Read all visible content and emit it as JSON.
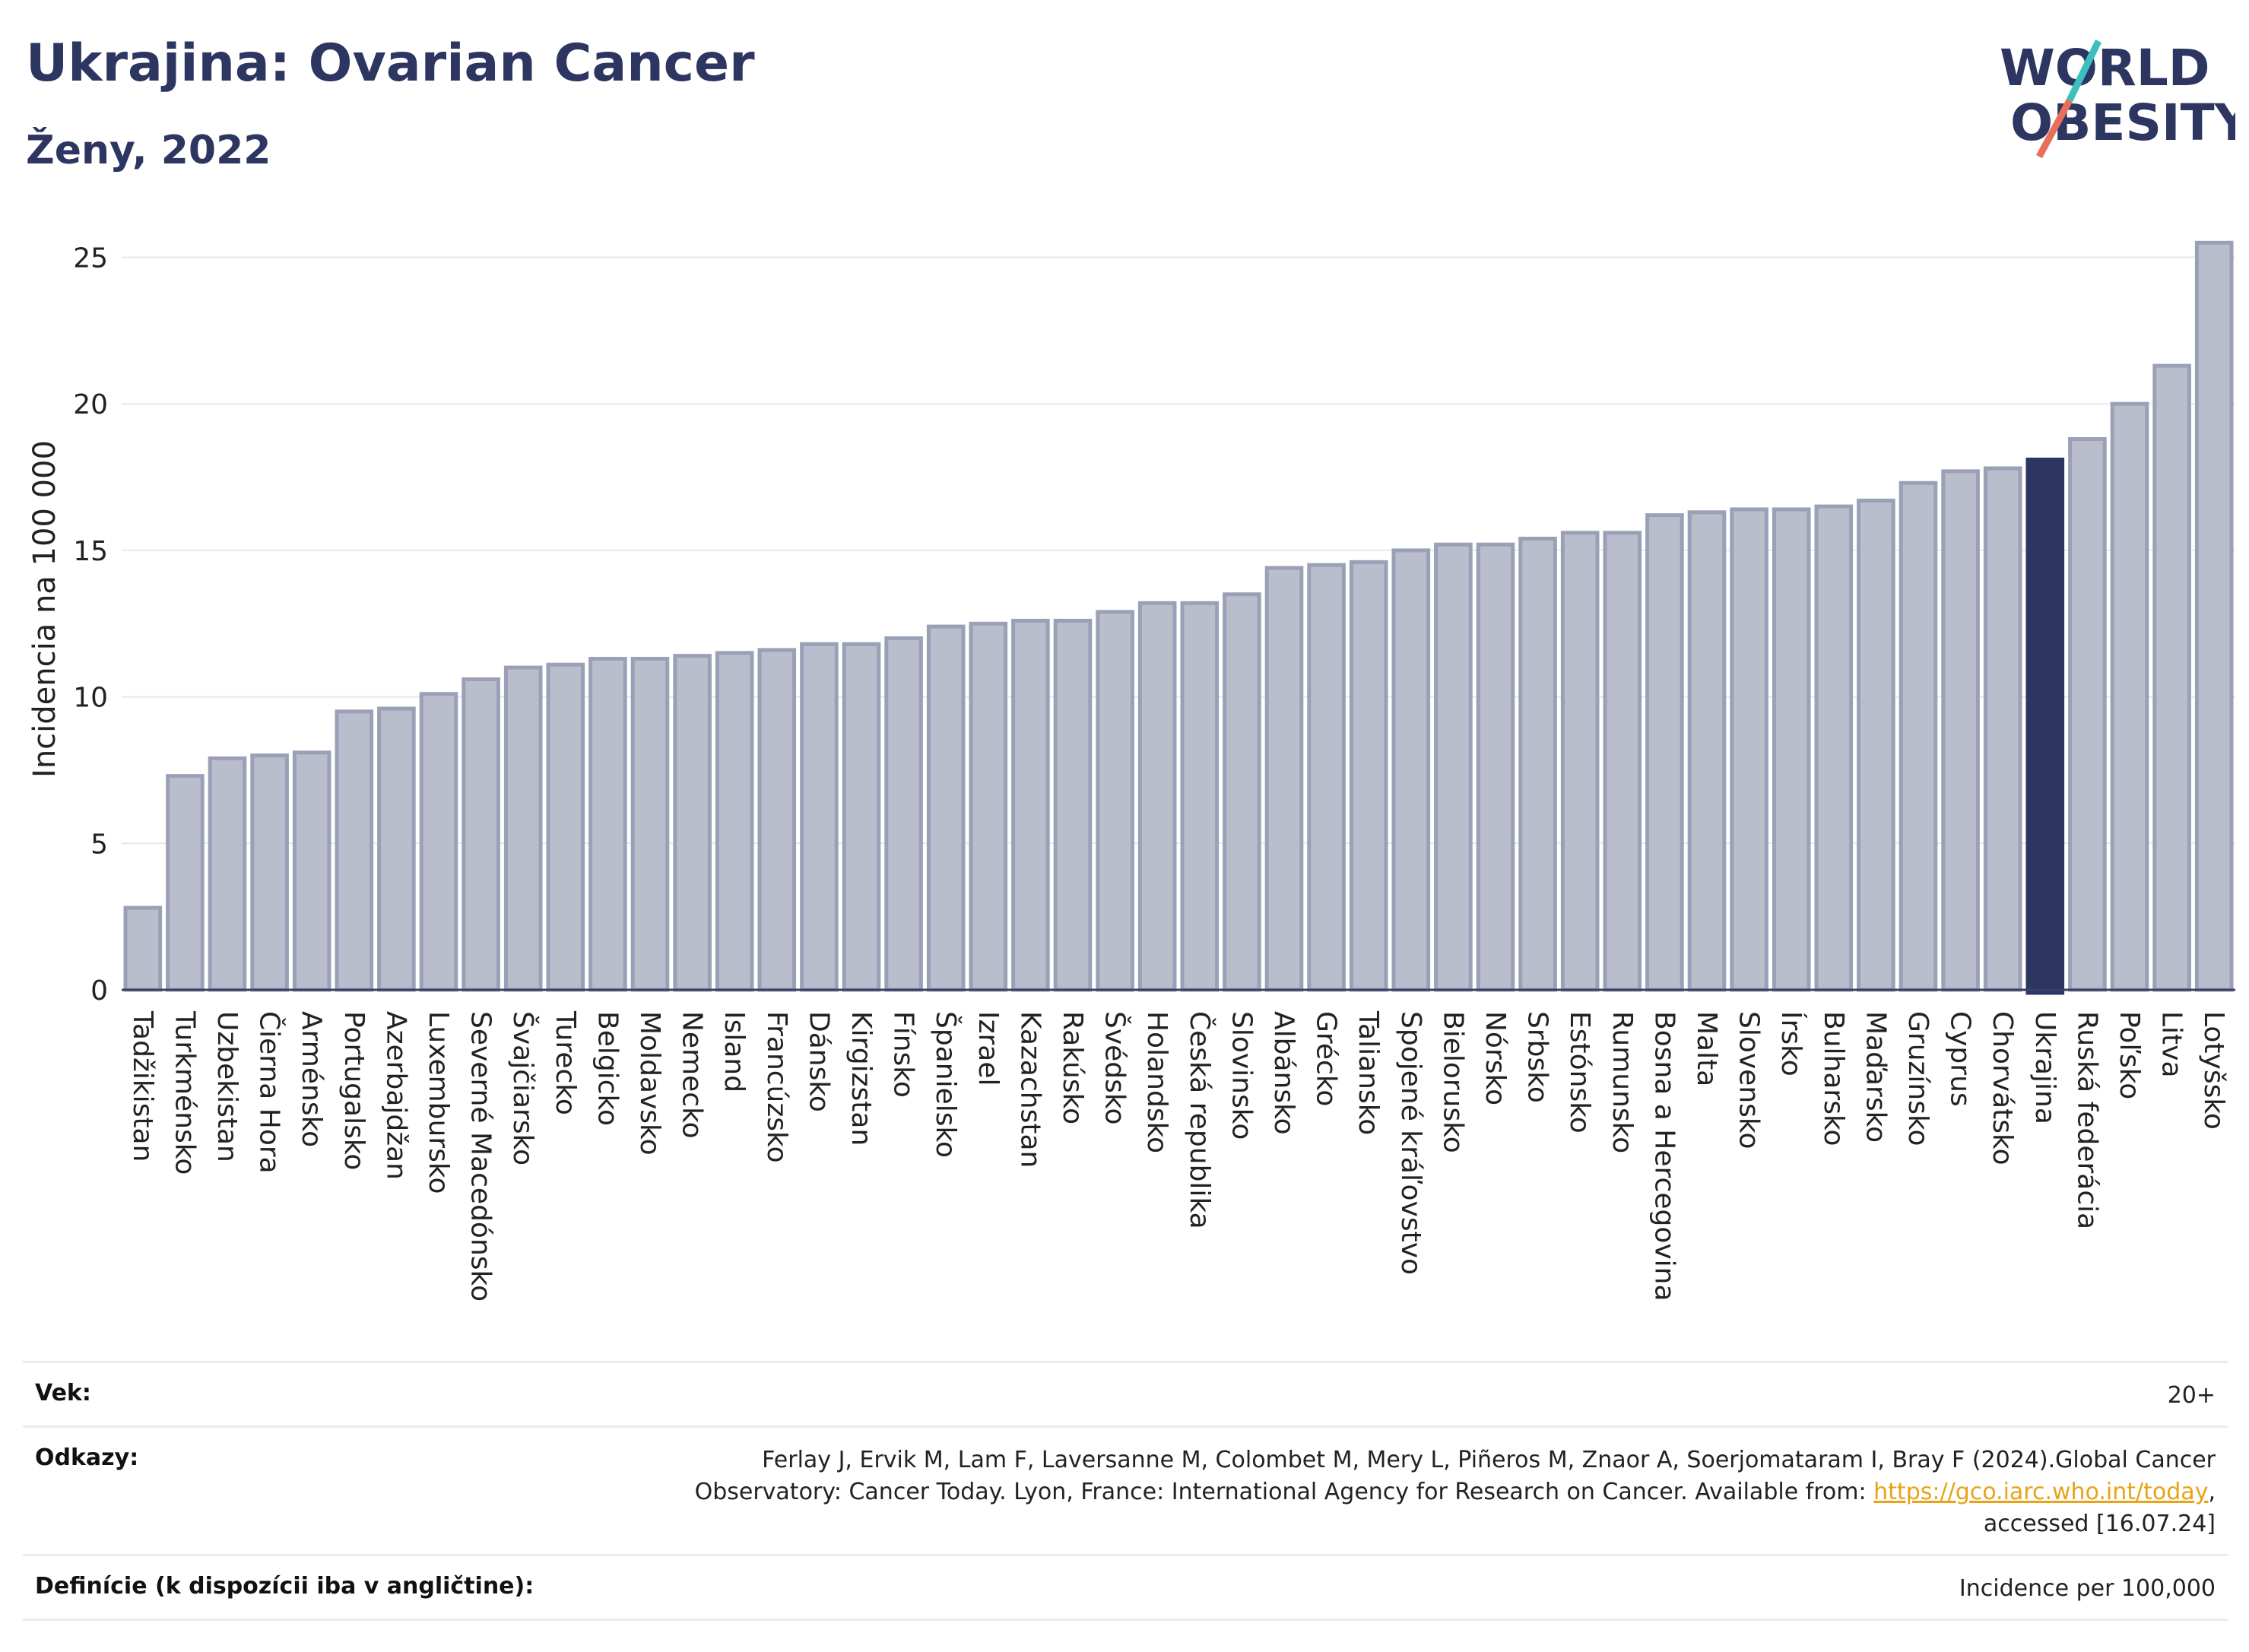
{
  "header": {
    "title": "Ukrajina: Ovarian Cancer",
    "subtitle": "Ženy, 2022"
  },
  "logo": {
    "line1": "WORLD",
    "line2": "OBESITY",
    "icon": "world-obesity-logo",
    "colors": {
      "text": "#2d3561",
      "slash_top": "#3bbfbf",
      "slash_bottom": "#e8705a"
    }
  },
  "chart_data": {
    "type": "bar",
    "ylabel": "Incidencia na 100 000",
    "ylim": [
      0,
      26
    ],
    "yticks": [
      0,
      5,
      10,
      15,
      20,
      25
    ],
    "grid": true,
    "highlight": "Ukrajina",
    "colors": {
      "bar": "#b9bdcc",
      "bar_edge": "#9aa0b6",
      "highlight": "#2d3561"
    },
    "categories": [
      "Tadžikistan",
      "Turkménsko",
      "Uzbekistan",
      "Čierna Hora",
      "Arménsko",
      "Portugalsko",
      "Azerbajdžan",
      "Luxembursko",
      "Severné Macedónsko",
      "Švajčiarsko",
      "Turecko",
      "Belgicko",
      "Moldavsko",
      "Nemecko",
      "Island",
      "Francúzsko",
      "Dánsko",
      "Kirgizstan",
      "Fínsko",
      "Španielsko",
      "Izrael",
      "Kazachstan",
      "Rakúsko",
      "Švédsko",
      "Holandsko",
      "Česká republika",
      "Slovinsko",
      "Albánsko",
      "Grécko",
      "Taliansko",
      "Spojené kráľovstvo",
      "Bielorusko",
      "Nórsko",
      "Srbsko",
      "Estónsko",
      "Rumunsko",
      "Bosna a Hercegovina",
      "Malta",
      "Slovensko",
      "Írsko",
      "Bulharsko",
      "Maďarsko",
      "Gruzínsko",
      "Cyprus",
      "Chorvátsko",
      "Ukrajina",
      "Ruská federácia",
      "Poľsko",
      "Litva",
      "Lotyšsko"
    ],
    "values": [
      2.8,
      7.3,
      7.9,
      8.0,
      8.1,
      9.5,
      9.6,
      10.1,
      10.6,
      11.0,
      11.1,
      11.3,
      11.3,
      11.4,
      11.5,
      11.6,
      11.8,
      11.8,
      12.0,
      12.4,
      12.5,
      12.6,
      12.6,
      12.9,
      13.2,
      13.2,
      13.5,
      14.4,
      14.5,
      14.6,
      15.0,
      15.2,
      15.2,
      15.4,
      15.6,
      15.6,
      16.2,
      16.3,
      16.4,
      16.4,
      16.5,
      16.7,
      17.3,
      17.7,
      17.8,
      18.1,
      18.8,
      20.0,
      21.3,
      25.5
    ]
  },
  "info": {
    "age_label": "Vek:",
    "age_value": "20+",
    "refs_label": "Odkazy:",
    "refs_text_1": "Ferlay J, Ervik M, Lam F, Laversanne M, Colombet M, Mery L, Piñeros M, Znaor A, Soerjomataram I, Bray F (2024).Global Cancer",
    "refs_text_2": "Observatory: Cancer Today. Lyon, France: International Agency for Research on Cancer. Available from: ",
    "refs_link": "https://gco.iarc.who.int/today",
    "refs_text_3": ",",
    "refs_text_4": "accessed [16.07.24]",
    "def_label": "Definície (k dispozícii iba v angličtine):",
    "def_value": "Incidence per 100,000"
  }
}
